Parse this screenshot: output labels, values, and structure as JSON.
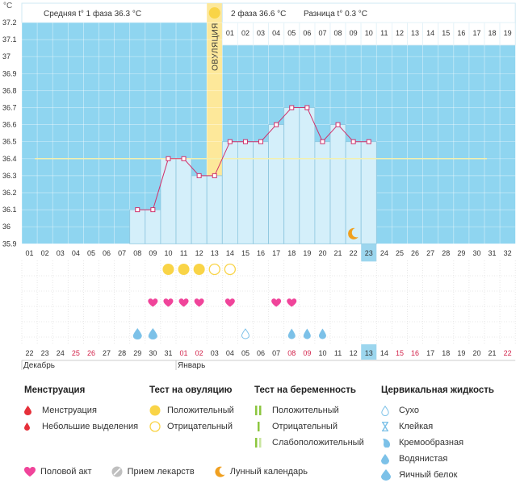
{
  "header": {
    "unit": "°C",
    "phase1_label": "Средняя t° 1 фаза",
    "phase1_value": "36.3 °C",
    "phase2_label": "2 фаза",
    "phase2_value": "36.6 °C",
    "diff_label": "Разница t°",
    "diff_value": "0.3 °C",
    "ovulation_text": "ОВУЛЯЦИЯ",
    "phase2_day_labels": [
      "01",
      "02",
      "03",
      "04",
      "05",
      "06",
      "07",
      "08",
      "09",
      "10",
      "11",
      "12",
      "13",
      "14",
      "15",
      "16",
      "17",
      "18",
      "19"
    ]
  },
  "chart_data": {
    "type": "line",
    "title": "",
    "xlabel": "",
    "ylabel": "°C",
    "ylim": [
      35.9,
      37.2
    ],
    "yticks": [
      "37.2",
      "37.1",
      "37",
      "36.9",
      "36.8",
      "36.7",
      "36.6",
      "36.5",
      "36.4",
      "36.3",
      "36.2",
      "36.1",
      "36",
      "35.9"
    ],
    "cycle_days": [
      "01",
      "02",
      "03",
      "04",
      "05",
      "06",
      "07",
      "08",
      "09",
      "10",
      "11",
      "12",
      "13",
      "14",
      "15",
      "16",
      "17",
      "18",
      "19",
      "20",
      "21",
      "22",
      "23",
      "24",
      "25",
      "26",
      "27",
      "28",
      "29",
      "30",
      "31",
      "32"
    ],
    "highlighted_cycle_day": "23",
    "ovulation_day": 13,
    "coverline": 36.4,
    "series": [
      {
        "x": [
          8,
          9,
          10,
          11,
          12,
          13,
          14,
          15,
          16,
          17,
          18,
          19,
          20,
          21,
          22,
          23
        ],
        "values": [
          36.1,
          36.1,
          36.4,
          36.4,
          36.3,
          36.3,
          36.5,
          36.5,
          36.5,
          36.6,
          36.7,
          36.7,
          36.5,
          36.6,
          36.5,
          36.5
        ]
      }
    ],
    "moon_day": 22,
    "ovulation_test": {
      "positive_days": [
        10,
        11,
        12
      ],
      "negative_days": [
        13,
        14
      ]
    },
    "intercourse_days": [
      9,
      10,
      11,
      12,
      14,
      17,
      18
    ],
    "cervical_fluid": [
      {
        "day": 8,
        "kind": "egg_white"
      },
      {
        "day": 9,
        "kind": "egg_white"
      },
      {
        "day": 15,
        "kind": "dry"
      },
      {
        "day": 18,
        "kind": "watery"
      },
      {
        "day": 19,
        "kind": "watery"
      },
      {
        "day": 20,
        "kind": "watery"
      }
    ],
    "calendar": {
      "dates": [
        "22",
        "23",
        "24",
        "25",
        "26",
        "27",
        "28",
        "29",
        "30",
        "31",
        "01",
        "02",
        "03",
        "04",
        "05",
        "06",
        "07",
        "08",
        "09",
        "10",
        "11",
        "12",
        "13",
        "14",
        "15",
        "16",
        "17",
        "18",
        "19",
        "20",
        "21",
        "22"
      ],
      "weekend": [
        false,
        false,
        false,
        true,
        true,
        false,
        false,
        false,
        false,
        false,
        true,
        true,
        false,
        false,
        false,
        false,
        false,
        true,
        true,
        false,
        false,
        false,
        false,
        false,
        true,
        true,
        false,
        false,
        false,
        false,
        false,
        true
      ],
      "highlighted_index": 22,
      "month_labels": [
        {
          "text": "Декабрь",
          "start_index": 0
        },
        {
          "text": "Январь",
          "start_index": 10
        }
      ]
    }
  },
  "legend": {
    "menstruation": {
      "title": "Менструация",
      "items": [
        "Менструация",
        "Небольшие выделения"
      ]
    },
    "ovulation_test": {
      "title": "Тест на овуляцию",
      "items": [
        "Положительный",
        "Отрицательный"
      ]
    },
    "pregnancy_test": {
      "title": "Тест на беременность",
      "items": [
        "Положительный",
        "Отрицательный",
        "Слабоположительный"
      ]
    },
    "cervical_fluid": {
      "title": "Цервикальная жидкость",
      "items": [
        "Сухо",
        "Клейкая",
        "Кремообразная",
        "Водянистая",
        "Яичный белок"
      ]
    },
    "bottom": [
      "Половой акт",
      "Прием лекарств",
      "Лунный календарь"
    ]
  },
  "colors": {
    "phase_bg": "#8fd5f0",
    "bar_fill": "#d4effa",
    "bar_stroke": "#8cc6de",
    "line": "#d0306a",
    "ovulation_band": "#fde89a",
    "heart": "#f0449a",
    "drop": "#7cc1e8",
    "ov_test": "#f9d447",
    "menstruation": "#e6303a",
    "moon": "#f0a020",
    "weekend": "#d2224a",
    "highlight_cell": "#9cd6ee"
  }
}
